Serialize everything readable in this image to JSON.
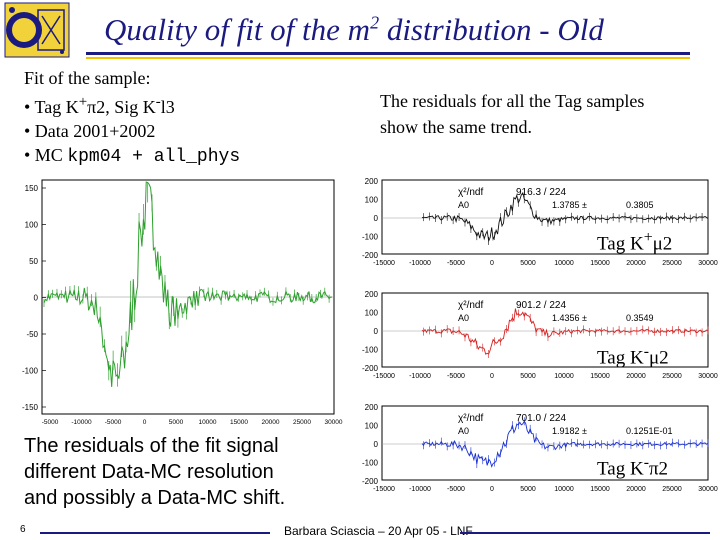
{
  "header": {
    "title_pre": "Quality of fit of the m",
    "title_sup": "2",
    "title_post": " distribution - Old"
  },
  "sample": {
    "line1": "Fit of the sample:",
    "line2_pre": "• Tag K",
    "line2_sup1": "+",
    "line2_mid": "π2, Sig K",
    "line2_sup2": "-",
    "line2_post": "l3",
    "line3": "• Data 2001+2002",
    "line4_pre": "• MC ",
    "line4_code": "kpm04 + all_phys"
  },
  "residuals_note": "The residuals for all the Tag samples show the same trend.",
  "fit_note": {
    "line1": "The residuals of the fit signal",
    "line2": "different Data-MC resolution",
    "line3": "and possibly a Data-MC shift."
  },
  "main_plot": {
    "yticks": [
      "150",
      "100",
      "50",
      "0",
      "-50",
      "-100",
      "-150"
    ],
    "xticks": [
      "-5000",
      "-10000",
      "-5000",
      "0",
      "5000",
      "10000",
      "15000",
      "20000",
      "25000",
      "30000"
    ],
    "color": "#2ea02e"
  },
  "small_plots": [
    {
      "tag_pre": "Tag K",
      "tag_sup": "+",
      "tag_post": "μ2",
      "color": "#111111",
      "chi_label": "χ²/ndf",
      "chi_value": "916.3  /  224",
      "param_label": "A0",
      "param_value": "1.3785 ±",
      "param_err": "0.3805"
    },
    {
      "tag_pre": "Tag K",
      "tag_sup": "-",
      "tag_post": "μ2",
      "color": "#d42020",
      "chi_label": "χ²/ndf",
      "chi_value": "901.2  /  224",
      "param_label": "A0",
      "param_value": "1.4356 ±",
      "param_err": "0.3549"
    },
    {
      "tag_pre": "Tag K",
      "tag_sup": "-",
      "tag_post": "π2",
      "color": "#1a30d0",
      "chi_label": "χ²/ndf",
      "chi_value": "701.0  /  224",
      "param_label": "A0",
      "param_value": "1.9182 ±",
      "param_err": "0.1251E-01"
    }
  ],
  "small_plot_axes": {
    "yticks": [
      "200",
      "100",
      "0",
      "-100",
      "-200"
    ],
    "xticks": [
      "-15000",
      "-10000",
      "-5000",
      "0",
      "5000",
      "10000",
      "15000",
      "20000",
      "25000",
      "30000"
    ]
  },
  "footer": {
    "page": "6",
    "text": "Barbara Sciascia – 20 Apr 05 - LNF"
  }
}
